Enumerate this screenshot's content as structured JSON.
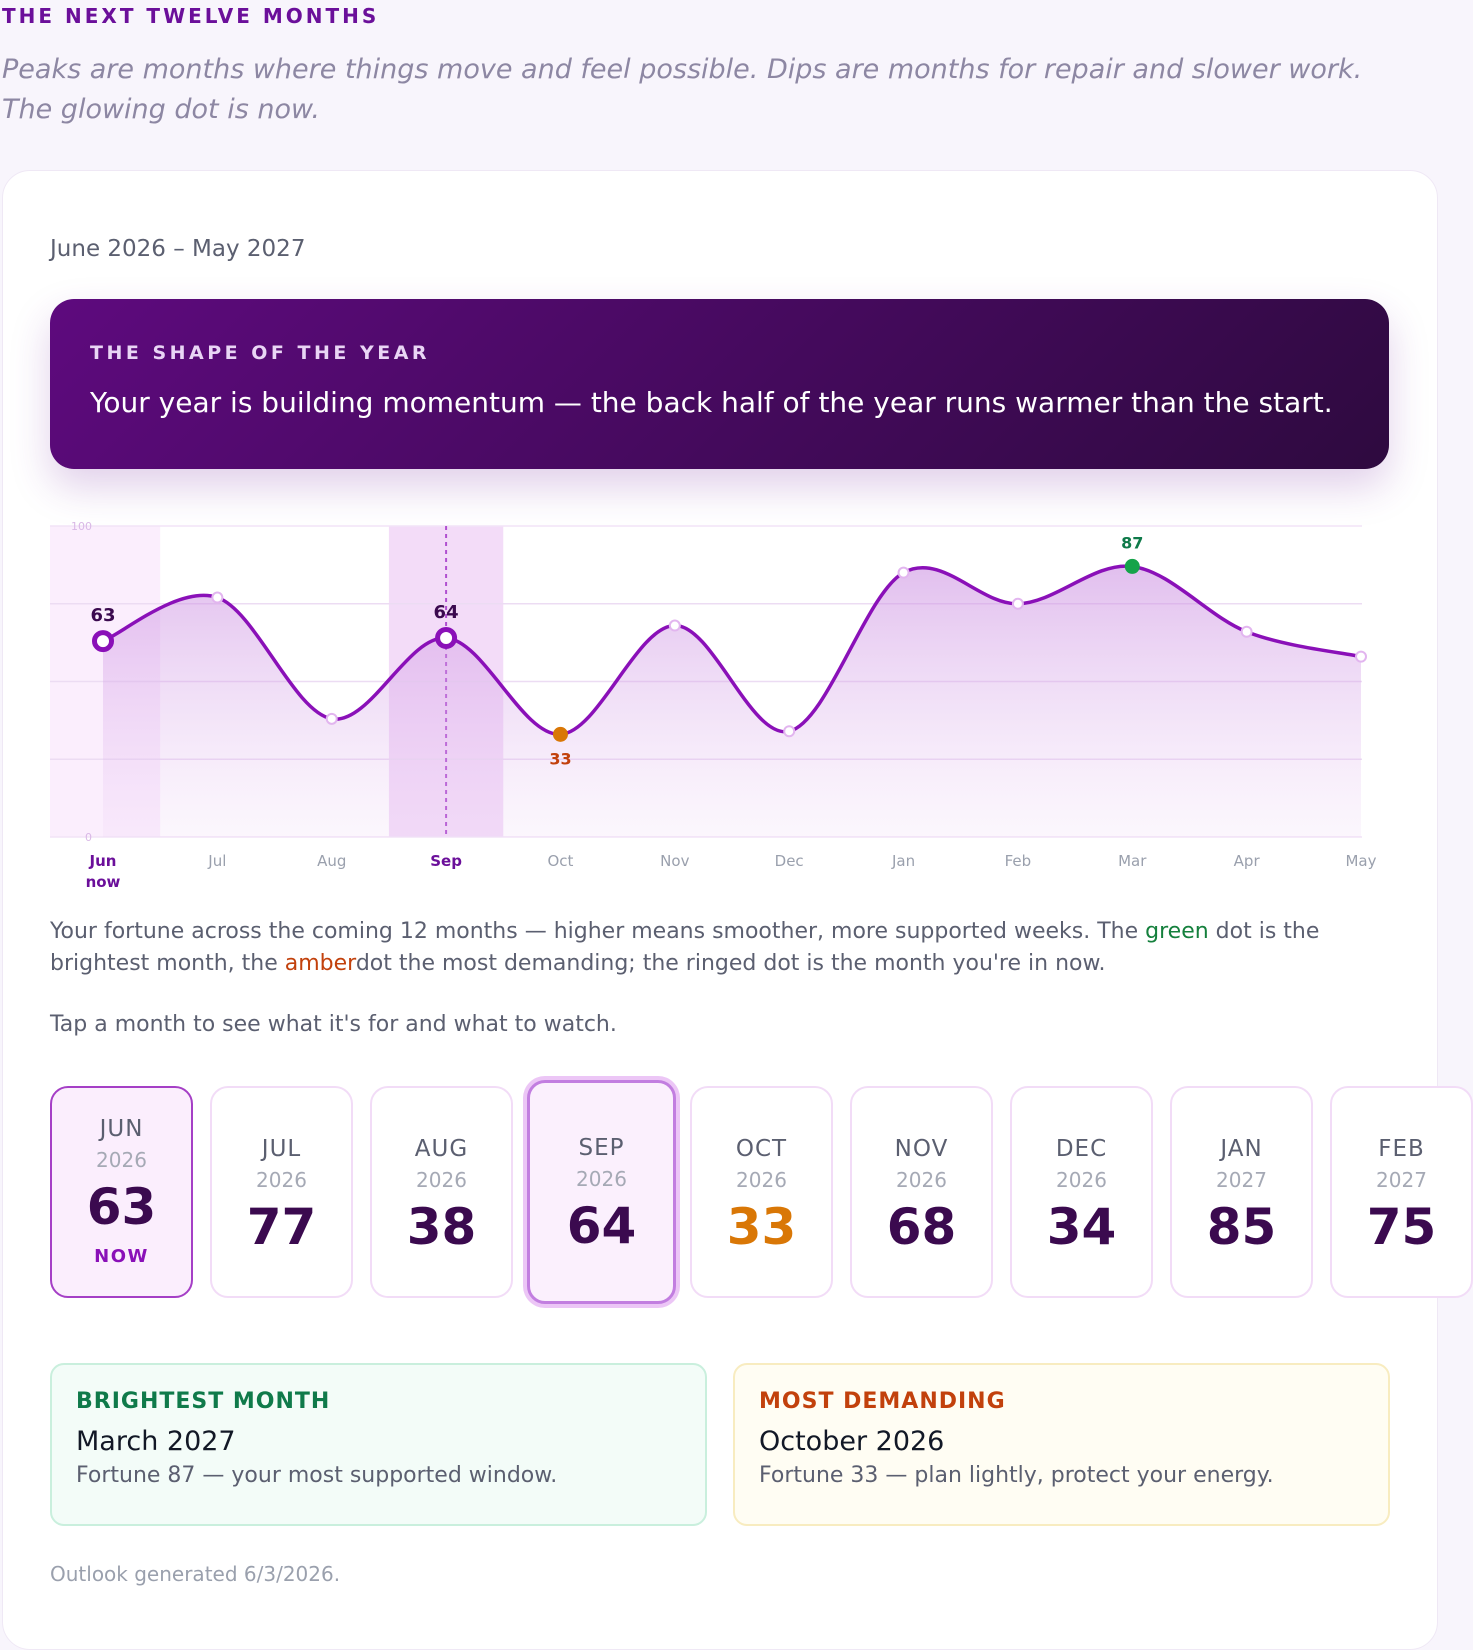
{
  "header": {
    "title": "THE NEXT TWELVE MONTHS",
    "subtitle": "Peaks are months where things move and feel possible. Dips are months for repair and slower work. The glowing dot is now."
  },
  "range": "June 2026 – May 2027",
  "banner": {
    "label": "THE SHAPE OF THE YEAR",
    "text": "Your year is building momentum — the back half of the year runs warmer than the start."
  },
  "chart_data": {
    "type": "line",
    "categories": [
      "Jun",
      "Jul",
      "Aug",
      "Sep",
      "Oct",
      "Nov",
      "Dec",
      "Jan",
      "Feb",
      "Mar",
      "Apr",
      "May"
    ],
    "values": [
      63,
      77,
      38,
      64,
      33,
      68,
      34,
      85,
      75,
      87,
      66,
      58
    ],
    "ylim": [
      0,
      100
    ],
    "yticks": [
      0,
      100
    ],
    "grid_lines": [
      25,
      50,
      75
    ],
    "color": "#8a10b8",
    "max_color": "#16a34a",
    "min_color": "#d97706",
    "current_index": 0,
    "current_label": "now",
    "selected_index": 3
  },
  "explanation": {
    "parts": [
      "Your fortune across the coming 12 months — higher means smoother, more supported weeks. The ",
      "green",
      " dot is the brightest month, the ",
      "amber",
      "dot the most demanding; the ringed dot is the month you're in now."
    ],
    "tap": "Tap a month to see what it's for and what to watch."
  },
  "cards": [
    {
      "month": "JUN",
      "year": "2026"
    },
    {
      "month": "JUL",
      "year": "2026"
    },
    {
      "month": "AUG",
      "year": "2026"
    },
    {
      "month": "SEP",
      "year": "2026"
    },
    {
      "month": "OCT",
      "year": "2026"
    },
    {
      "month": "NOV",
      "year": "2026"
    },
    {
      "month": "DEC",
      "year": "2026"
    },
    {
      "month": "JAN",
      "year": "2027"
    },
    {
      "month": "FEB",
      "year": "2027"
    }
  ],
  "now_badge": "NOW",
  "summary": {
    "brightest": {
      "label": "BRIGHTEST MONTH",
      "title": "March 2027",
      "text": "Fortune 87 — your most supported window."
    },
    "demanding": {
      "label": "MOST DEMANDING",
      "title": "October 2026",
      "text": "Fortune 33 — plan lightly, protect your energy."
    }
  },
  "footer": "Outlook generated 6/3/2026."
}
